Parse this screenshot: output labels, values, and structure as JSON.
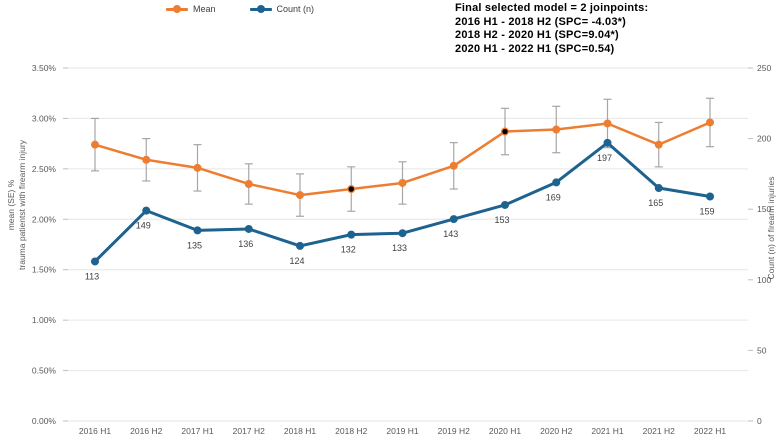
{
  "legend": {
    "items": [
      {
        "label": "Mean",
        "color": "#ED7D31"
      },
      {
        "label": "Count (n)",
        "color": "#1E6290"
      }
    ]
  },
  "annotation": {
    "lines": [
      "Final selected model = 2 joinpoints:",
      "2016 H1 - 2018 H2 (SPC= -4.03*)",
      "2018 H2 - 2020 H1 (SPC=9.04*)",
      "2020 H1 - 2022 H1 (SPC=0.54)"
    ]
  },
  "chart_data": {
    "type": "line",
    "categories": [
      "2016 H1",
      "2016 H2",
      "2017 H1",
      "2017 H2",
      "2018 H1",
      "2018 H2",
      "2019 H1",
      "2019 H2",
      "2020 H1",
      "2020 H2",
      "2021 H1",
      "2021 H2",
      "2022 H1"
    ],
    "series": [
      {
        "name": "Mean",
        "axis": "left",
        "color": "#ED7D31",
        "values": [
          2.74,
          2.59,
          2.51,
          2.35,
          2.24,
          2.3,
          2.36,
          2.53,
          2.87,
          2.89,
          2.95,
          2.74,
          2.96
        ],
        "se": [
          0.26,
          0.21,
          0.23,
          0.2,
          0.21,
          0.22,
          0.21,
          0.23,
          0.23,
          0.23,
          0.24,
          0.22,
          0.24
        ],
        "joinpoint_categories": [
          "2018 H2",
          "2020 H1"
        ],
        "joinpoint_indices": [
          5,
          8
        ]
      },
      {
        "name": "Count (n)",
        "axis": "right",
        "color": "#1E6290",
        "values": [
          113,
          149,
          135,
          136,
          124,
          132,
          133,
          143,
          153,
          169,
          197,
          165,
          159
        ],
        "data_labels": [
          113,
          149,
          135,
          136,
          124,
          132,
          133,
          143,
          153,
          169,
          197,
          165,
          159
        ]
      }
    ],
    "left_axis": {
      "title_line1": "mean (SE) %",
      "title_line2": "trauma patientst with firearm injury",
      "min": 0,
      "max": 3.5,
      "tick_values": [
        0,
        0.5,
        1,
        1.5,
        2,
        2.5,
        3,
        3.5
      ],
      "tick_labels": [
        "0.00%",
        "0.50%",
        "1.00%",
        "1.50%",
        "2.00%",
        "2.50%",
        "3.00%",
        "3.50%"
      ]
    },
    "right_axis": {
      "title": "Count (n) of firearm injuries",
      "min": 0,
      "max": 250,
      "tick_values": [
        0,
        50,
        100,
        150,
        200,
        250
      ],
      "tick_labels": [
        "0",
        "50",
        "100",
        "150",
        "200",
        "250"
      ]
    },
    "grid": true,
    "legend_position": "top",
    "colors": {
      "grid": "#E6E6E6",
      "tick_mark": "#BFBFBF",
      "error_bar": "#A6A6A6",
      "tick_text": "#595959",
      "data_label_text": "#3F3F3F",
      "joinpoint_marker": "#000000"
    }
  }
}
